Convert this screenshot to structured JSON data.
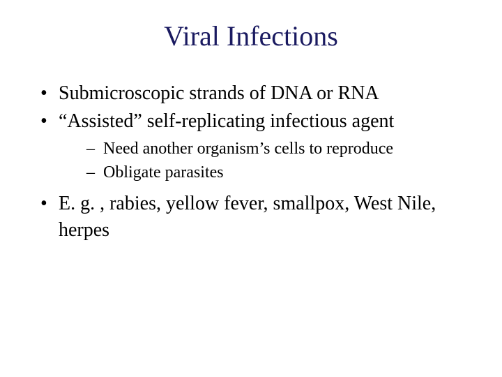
{
  "slide": {
    "title": "Viral Infections",
    "title_color": "#1a1a60",
    "background_color": "#ffffff",
    "body_color": "#000000",
    "title_fontsize": 40,
    "body_fontsize_level1": 28,
    "body_fontsize_level2": 24,
    "font_family": "Times New Roman",
    "bullets": {
      "b1": "Submicroscopic strands of DNA or RNA",
      "b2": "“Assisted” self-replicating infectious agent",
      "b2_sub1": "Need another organism’s cells to reproduce",
      "b2_sub2": "Obligate parasites",
      "b3": "E. g. , rabies, yellow fever, smallpox, West Nile, herpes"
    }
  }
}
